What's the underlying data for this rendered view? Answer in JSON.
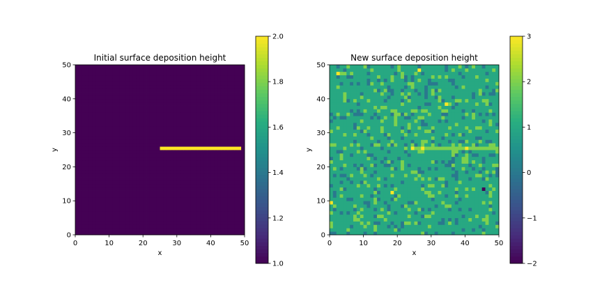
{
  "chart_data": [
    {
      "type": "heatmap",
      "title": "Initial surface deposition height",
      "xlabel": "x",
      "ylabel": "y",
      "xlim": [
        0,
        50
      ],
      "ylim": [
        0,
        50
      ],
      "xticks": [
        "0",
        "10",
        "20",
        "30",
        "40",
        "50"
      ],
      "yticks": [
        "0",
        "10",
        "20",
        "30",
        "40",
        "50"
      ],
      "colormap": "viridis",
      "colorbar": {
        "range": [
          1.0,
          2.0
        ],
        "ticks": [
          "1.0",
          "1.2",
          "1.4",
          "1.6",
          "1.8",
          "2.0"
        ]
      },
      "grid_size": [
        50,
        50
      ],
      "background_value": 1.0,
      "features": [
        {
          "description": "horizontal bar",
          "x_range": [
            25,
            49
          ],
          "y_range": [
            25,
            26
          ],
          "value": 2.0
        }
      ]
    },
    {
      "type": "heatmap",
      "title": "New surface deposition height",
      "xlabel": "x",
      "ylabel": "y",
      "xlim": [
        0,
        50
      ],
      "ylim": [
        0,
        50
      ],
      "xticks": [
        "0",
        "10",
        "20",
        "30",
        "40",
        "50"
      ],
      "yticks": [
        "0",
        "10",
        "20",
        "30",
        "40",
        "50"
      ],
      "colormap": "viridis",
      "colorbar": {
        "range": [
          -2,
          3
        ],
        "ticks": [
          "−2",
          "−1",
          "0",
          "1",
          "2",
          "3"
        ]
      },
      "grid_size": [
        50,
        50
      ],
      "background_value": 1,
      "noise": {
        "values": [
          0,
          2
        ],
        "fraction_each": 0.12
      },
      "features": [
        {
          "description": "horizontal ridge",
          "x_range": [
            25,
            49
          ],
          "y_range": [
            25,
            26
          ],
          "value": 2
        },
        {
          "description": "vertical ridge",
          "x_range": [
            19,
            20
          ],
          "y_range": [
            32,
            37
          ],
          "value": 2
        }
      ],
      "hotspots": [
        {
          "x": 2,
          "y": 47,
          "value": 3
        },
        {
          "x": 26,
          "y": 48,
          "value": 3
        },
        {
          "x": 34,
          "y": 38,
          "value": 3
        },
        {
          "x": 24,
          "y": 25,
          "value": 3
        },
        {
          "x": 27,
          "y": 25,
          "value": 3
        },
        {
          "x": 40,
          "y": 25,
          "value": 3
        },
        {
          "x": 18,
          "y": 12,
          "value": 3
        },
        {
          "x": 0,
          "y": 9,
          "value": 3
        },
        {
          "x": 45,
          "y": 13,
          "value": -2
        }
      ]
    }
  ]
}
